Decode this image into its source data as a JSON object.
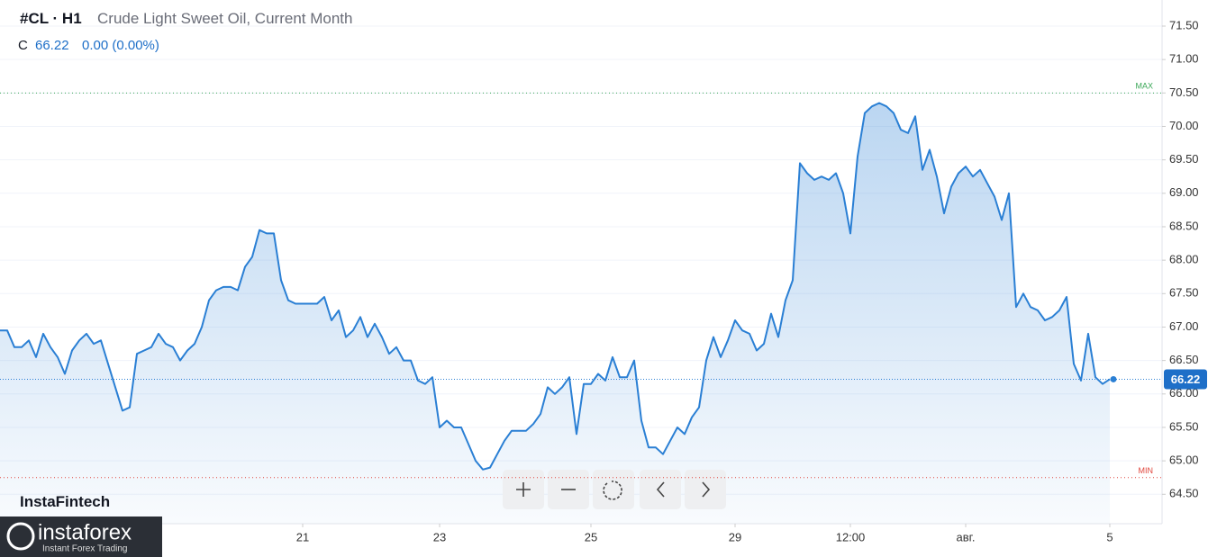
{
  "header": {
    "symbol": "#CL · H1",
    "description": "Crude Light Sweet Oil, Current Month",
    "close_label": "C",
    "change": "0.00 (0.00%)"
  },
  "branding": {
    "watermark": "InstaFintech",
    "logo": "instaforex",
    "logo_tagline": "Instant Forex Trading"
  },
  "chart_data": {
    "type": "area",
    "categories": [
      null,
      null,
      null,
      null,
      null,
      null,
      null,
      null,
      null,
      null,
      null,
      null,
      null,
      null,
      null,
      null,
      null,
      null,
      null,
      null,
      null,
      null,
      null,
      null,
      null,
      null,
      null,
      null,
      null,
      null,
      null,
      null,
      null,
      null,
      null,
      null,
      null,
      null,
      null,
      null,
      null,
      null,
      "21",
      null,
      null,
      null,
      null,
      null,
      null,
      null,
      null,
      null,
      null,
      null,
      null,
      null,
      null,
      null,
      null,
      null,
      null,
      "23",
      null,
      null,
      null,
      null,
      null,
      null,
      null,
      null,
      null,
      null,
      null,
      null,
      null,
      null,
      null,
      null,
      null,
      null,
      null,
      null,
      "25",
      null,
      null,
      null,
      null,
      null,
      null,
      null,
      null,
      null,
      null,
      null,
      null,
      null,
      null,
      null,
      null,
      null,
      null,
      null,
      "29",
      null,
      null,
      null,
      null,
      null,
      null,
      null,
      null,
      null,
      null,
      null,
      null,
      null,
      null,
      null,
      "12:00",
      null,
      null,
      null,
      null,
      null,
      null,
      null,
      null,
      null,
      null,
      null,
      null,
      null,
      null,
      null,
      "авг.",
      null,
      null,
      null,
      null,
      null,
      null,
      null,
      null,
      null,
      null,
      null,
      null,
      null,
      null,
      null,
      null,
      null,
      null,
      null,
      "5"
    ],
    "values": [
      66.95,
      66.95,
      66.7,
      66.7,
      66.8,
      66.55,
      66.9,
      66.7,
      66.55,
      66.3,
      66.65,
      66.8,
      66.9,
      66.75,
      66.8,
      66.45,
      66.1,
      65.75,
      65.8,
      66.6,
      66.65,
      66.7,
      66.9,
      66.75,
      66.7,
      66.5,
      66.65,
      66.75,
      67.0,
      67.4,
      67.55,
      67.6,
      67.6,
      67.55,
      67.9,
      68.05,
      68.45,
      68.4,
      68.4,
      67.7,
      67.4,
      67.35,
      67.35,
      67.35,
      67.35,
      67.45,
      67.1,
      67.25,
      66.85,
      66.95,
      67.15,
      66.85,
      67.05,
      66.85,
      66.6,
      66.7,
      66.5,
      66.5,
      66.2,
      66.15,
      66.25,
      65.5,
      65.6,
      65.5,
      65.5,
      65.25,
      65.0,
      64.87,
      64.9,
      65.1,
      65.3,
      65.45,
      65.45,
      65.45,
      65.55,
      65.7,
      66.1,
      66.0,
      66.1,
      66.25,
      65.4,
      66.15,
      66.15,
      66.3,
      66.2,
      66.55,
      66.25,
      66.25,
      66.5,
      65.6,
      65.2,
      65.2,
      65.1,
      65.3,
      65.5,
      65.4,
      65.65,
      65.8,
      66.5,
      66.85,
      66.55,
      66.8,
      67.1,
      66.95,
      66.9,
      66.65,
      66.75,
      67.2,
      66.85,
      67.4,
      67.7,
      69.45,
      69.3,
      69.2,
      69.25,
      69.2,
      69.3,
      69.0,
      68.4,
      69.55,
      70.2,
      70.3,
      70.35,
      70.3,
      70.2,
      69.95,
      69.9,
      70.15,
      69.35,
      69.65,
      69.25,
      68.7,
      69.1,
      69.3,
      69.4,
      69.25,
      69.35,
      69.15,
      68.95,
      68.6,
      69.0,
      67.3,
      67.5,
      67.3,
      67.25,
      67.1,
      67.15,
      67.25,
      67.45,
      66.45,
      66.2,
      66.9,
      66.25,
      66.15,
      66.22
    ],
    "color": "#2a7fd4",
    "ylim": [
      64.06,
      71.89
    ],
    "yticks": [
      {
        "value": 64.5,
        "label": "64.50"
      },
      {
        "value": 65.0,
        "label": "65.00"
      },
      {
        "value": 65.5,
        "label": "65.50"
      },
      {
        "value": 66.0,
        "label": "66.00"
      },
      {
        "value": 66.5,
        "label": "66.50"
      },
      {
        "value": 67.0,
        "label": "67.00"
      },
      {
        "value": 67.5,
        "label": "67.50"
      },
      {
        "value": 68.0,
        "label": "68.00"
      },
      {
        "value": 68.5,
        "label": "68.50"
      },
      {
        "value": 69.0,
        "label": "69.00"
      },
      {
        "value": 69.5,
        "label": "69.50"
      },
      {
        "value": 70.0,
        "label": "70.00"
      },
      {
        "value": 70.5,
        "label": "70.50"
      },
      {
        "value": 71.0,
        "label": "71.00"
      },
      {
        "value": 71.5,
        "label": "71.50"
      }
    ],
    "grid": true,
    "last_value": 66.22,
    "max_line": {
      "label": "MAX",
      "value": 70.5,
      "color": "#3aa757"
    },
    "min_line": {
      "label": "MIN",
      "value": 64.75,
      "color": "#e0443b"
    }
  }
}
